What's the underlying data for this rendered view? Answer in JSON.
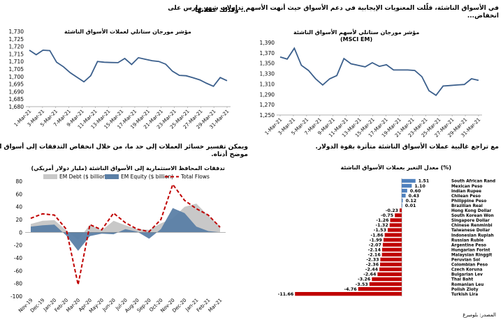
{
  "page": {
    "intro_right_line1": "في الأسواق الناشئة، قلّلت المعنويات الإيجابية في دعم الأسواق حيث أنهت الأسهم تداولات شهر مارس على",
    "intro_right_line2": "انخفاض...",
    "intro_left": "... وكذلك عملاتها",
    "mid_right": "مع تراجع غالبية عملات الأسواق الناشئة متأثرة بقوة الدولار.",
    "mid_left_line1": "ويمكن تفسير خسائر العملات إلى حد ما، من خلال انخفاض التدفقات إلى أسواق الأسواق الناشئة كما هو",
    "mid_left_line2": "موضح أدناه.",
    "source": "المصدر: بلومبرغ"
  },
  "chart_data": [
    {
      "id": "msci-em",
      "type": "line",
      "title": "مؤشر مورجان ستانلي لأسهم الأسواق الناشئة",
      "subtitle": "(MSCI EM)",
      "color": "#3b5f8c",
      "x_labels": [
        "1-Mar-21",
        "3-Mar-21",
        "5-Mar-21",
        "7-Mar-21",
        "9-Mar-21",
        "11-Mar-21",
        "13-Mar-21",
        "15-Mar-21",
        "17-Mar-21",
        "19-Mar-21",
        "21-Mar-21",
        "23-Mar-21",
        "25-Mar-21",
        "27-Mar-21",
        "29-Mar-21",
        "31-Mar-21"
      ],
      "values": [
        1362,
        1358,
        1379,
        1346,
        1336,
        1320,
        1308,
        1320,
        1326,
        1359,
        1349,
        1346,
        1343,
        1351,
        1344,
        1347,
        1337,
        1337,
        1337,
        1336,
        1324,
        1297,
        1288,
        1306,
        1307,
        1308,
        1309,
        1320,
        1317
      ],
      "ylim": [
        1250,
        1390
      ],
      "yticks": [
        "1,250",
        "1,270",
        "1,290",
        "1,310",
        "1,330",
        "1,350",
        "1,370",
        "1,390"
      ]
    },
    {
      "id": "em-currency",
      "type": "line",
      "title": "مؤشر مورجان ستانلي لعملات الأسواق الناشئة",
      "color": "#3b5f8c",
      "x_labels": [
        "1-Mar-21",
        "3-Mar-21",
        "5-Mar-21",
        "7-Mar-21",
        "9-Mar-21",
        "11-Mar-21",
        "13-Mar-21",
        "15-Mar-21",
        "17-Mar-21",
        "19-Mar-21",
        "21-Mar-21",
        "23-Mar-21",
        "25-Mar-21",
        "27-Mar-21",
        "29-Mar-21",
        "31-Mar-21"
      ],
      "values": [
        1717.5,
        1714.5,
        1717.5,
        1717.2,
        1709.5,
        1706.5,
        1702.5,
        1699.5,
        1696.5,
        1700.5,
        1710,
        1709.5,
        1709.3,
        1709.2,
        1712,
        1708,
        1712.5,
        1711.5,
        1710.5,
        1710,
        1708.2,
        1703.5,
        1700.8,
        1700.5,
        1699.2,
        1697.8,
        1695.5,
        1693.5,
        1699.3,
        1697.2
      ],
      "ylim": [
        1680,
        1730
      ],
      "yticks": [
        "1,680",
        "1,685",
        "1,690",
        "1,695",
        "1,700",
        "1,705",
        "1,710",
        "1,715",
        "1,720",
        "1,725",
        "1,730"
      ]
    },
    {
      "id": "em-flows",
      "type": "area",
      "title": "تدفقات المحافظ الاستثمارية  إلى الأسواق الناشئة  (مليار دولار أمريكي)",
      "categories": [
        "Nov-19",
        "Dec-19",
        "Jan-20",
        "Feb-20",
        "Mar-20",
        "Apr-20",
        "May-20",
        "Jun-20",
        "Jul-20",
        "Aug-20",
        "Sep-20",
        "Oct-20",
        "Nov-20",
        "Dec-20",
        "Jan-21",
        "Feb-21",
        "Mar-21"
      ],
      "series": [
        {
          "name": "EM Debt ($ billion)",
          "color": "#c8c8c8",
          "values": [
            13,
            18,
            19,
            3,
            -12,
            12,
            3,
            18,
            11,
            5,
            4,
            14,
            22,
            40,
            45,
            26,
            10
          ]
        },
        {
          "name": "EM Equity ($ billion)",
          "color": "#5b7fa6",
          "values": [
            9,
            11,
            12,
            -5,
            -29,
            -6,
            -2,
            -3,
            5,
            1,
            -10,
            5,
            38,
            30,
            9,
            2,
            0
          ]
        },
        {
          "name": "Total Flows",
          "color": "#c00000",
          "values": [
            22,
            29,
            27,
            5,
            -82,
            12,
            4,
            30,
            15,
            5,
            1,
            20,
            75,
            50,
            37,
            27,
            8
          ]
        }
      ],
      "ylim": [
        -100,
        80
      ],
      "yticks": [
        "-100",
        "-80",
        "-60",
        "-40",
        "-20",
        "0",
        "20",
        "40",
        "60",
        "80"
      ]
    },
    {
      "id": "em-fx-change",
      "type": "bar",
      "title": "معدل التغير بعملات الأسواق الناشئة  (%)",
      "categories": [
        "South African Rand",
        "Mexican Peso",
        "Indian Rupee",
        "Chilean Peso",
        "Philippine Peso",
        "Brazilian Real",
        "Hong Kong Dollar",
        "South Korean Won",
        "Singapore Dollar",
        "Chinese Renminbi",
        "Taiwanese Dollar",
        "Indonesian Rupiah",
        "Russian Ruble",
        "Argentine Peso",
        "Hungarian Forint",
        "Malaysian Ringgit",
        "Peruvian Sol",
        "Colombian Peso",
        "Czech Koruna",
        "Bulgarian Lev",
        "Thai Baht",
        "Romanian Leu",
        "Polish Zloty",
        "Turkish Lira"
      ],
      "values": [
        1.51,
        1.1,
        0.6,
        0.43,
        0.12,
        0.01,
        -0.23,
        -0.75,
        -1.26,
        -1.32,
        -1.53,
        -1.86,
        -1.99,
        -2.07,
        -2.14,
        -2.16,
        -2.33,
        -2.36,
        -2.44,
        -2.64,
        -3.26,
        -3.53,
        -4.76,
        -11.66
      ],
      "labels": [
        "1.51",
        "1.10",
        "0.60",
        "0.43",
        "0.12",
        "0.01",
        "-0.23",
        "-0.75",
        "-1.26",
        "-1.32",
        "-1.53",
        "-1.86",
        "-1.99",
        "-2.07",
        "-2.14",
        "-2.16",
        "-2.33",
        "-2.36",
        "-2.44",
        "-2.64",
        "-3.26",
        "-3.53",
        "-4.76",
        "-11.66"
      ],
      "pos_color": "#4f81bd",
      "neg_color": "#c00000"
    }
  ]
}
